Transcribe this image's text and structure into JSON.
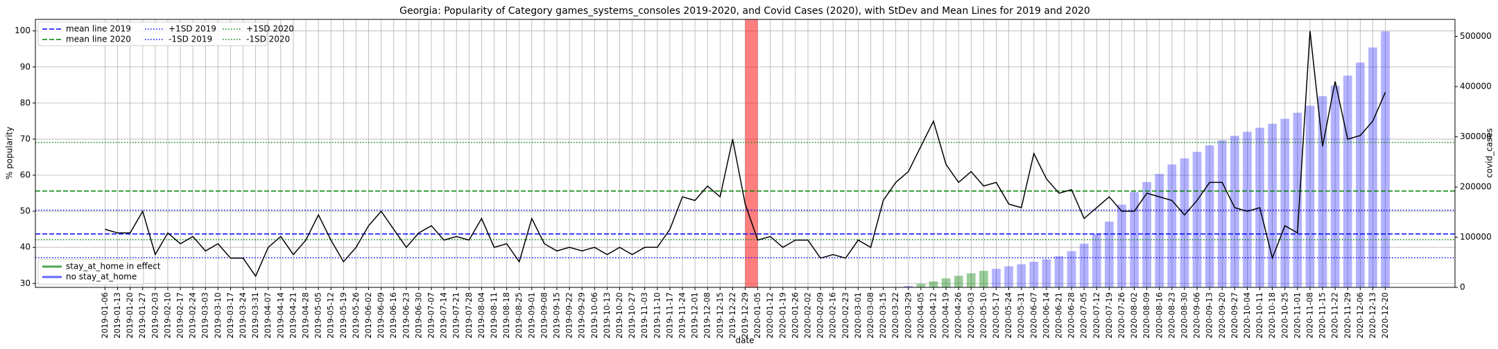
{
  "chart_data": {
    "type": "combo",
    "title": "Georgia: Popularity of Category games_systems_consoles 2019-2020, and Covid Cases (2020), with StDev and Mean Lines for 2019 and 2020",
    "xlabel": "date",
    "ylabel": "% popularity",
    "y2label": "covid_cases",
    "categories": [
      "2019-01-06",
      "2019-01-13",
      "2019-01-20",
      "2019-01-27",
      "2019-02-03",
      "2019-02-10",
      "2019-02-17",
      "2019-02-24",
      "2019-03-03",
      "2019-03-10",
      "2019-03-17",
      "2019-03-24",
      "2019-03-31",
      "2019-04-07",
      "2019-04-14",
      "2019-04-21",
      "2019-04-28",
      "2019-05-05",
      "2019-05-12",
      "2019-05-19",
      "2019-05-26",
      "2019-06-02",
      "2019-06-09",
      "2019-06-16",
      "2019-06-23",
      "2019-06-30",
      "2019-07-07",
      "2019-07-14",
      "2019-07-21",
      "2019-07-28",
      "2019-08-04",
      "2019-08-11",
      "2019-08-18",
      "2019-08-25",
      "2019-09-01",
      "2019-09-08",
      "2019-09-15",
      "2019-09-22",
      "2019-09-29",
      "2019-10-06",
      "2019-10-13",
      "2019-10-20",
      "2019-10-27",
      "2019-11-03",
      "2019-11-10",
      "2019-11-17",
      "2019-11-24",
      "2019-12-01",
      "2019-12-08",
      "2019-12-15",
      "2019-12-22",
      "2019-12-29",
      "2020-01-05",
      "2020-01-12",
      "2020-01-19",
      "2020-01-26",
      "2020-02-02",
      "2020-02-09",
      "2020-02-16",
      "2020-02-23",
      "2020-03-01",
      "2020-03-08",
      "2020-03-15",
      "2020-03-22",
      "2020-03-29",
      "2020-04-05",
      "2020-04-12",
      "2020-04-19",
      "2020-04-26",
      "2020-05-03",
      "2020-05-10",
      "2020-05-17",
      "2020-05-24",
      "2020-05-31",
      "2020-06-07",
      "2020-06-14",
      "2020-06-21",
      "2020-06-28",
      "2020-07-05",
      "2020-07-12",
      "2020-07-19",
      "2020-07-26",
      "2020-08-02",
      "2020-08-09",
      "2020-08-16",
      "2020-08-23",
      "2020-08-30",
      "2020-09-06",
      "2020-09-13",
      "2020-09-20",
      "2020-09-27",
      "2020-10-04",
      "2020-10-11",
      "2020-10-18",
      "2020-10-25",
      "2020-11-01",
      "2020-11-08",
      "2020-11-15",
      "2020-11-22",
      "2020-11-29",
      "2020-12-06",
      "2020-12-13",
      "2020-12-20"
    ],
    "series": [
      {
        "type": "bar",
        "axis": "y2",
        "name": "stay_at_home in effect",
        "color": "#008000",
        "alpha": 0.4,
        "values": [
          null,
          null,
          null,
          null,
          null,
          null,
          null,
          null,
          null,
          null,
          null,
          null,
          null,
          null,
          null,
          null,
          null,
          null,
          null,
          null,
          null,
          null,
          null,
          null,
          null,
          null,
          null,
          null,
          null,
          null,
          null,
          null,
          null,
          null,
          null,
          null,
          null,
          null,
          null,
          null,
          null,
          null,
          null,
          null,
          null,
          null,
          null,
          null,
          null,
          null,
          null,
          null,
          null,
          null,
          null,
          null,
          null,
          null,
          null,
          null,
          null,
          null,
          null,
          null,
          null,
          7000,
          12000,
          18000,
          23000,
          28000,
          33000,
          null,
          null,
          null,
          null,
          null,
          null,
          null,
          null,
          null,
          null,
          null,
          null,
          null,
          null,
          null,
          null,
          null,
          null,
          null,
          null,
          null,
          null,
          null,
          null,
          null,
          null,
          null,
          null,
          null,
          null,
          null,
          null
        ]
      },
      {
        "type": "bar",
        "axis": "y2",
        "name": "no stay_at_home",
        "color": "#0000ff",
        "alpha": 0.3,
        "values": [
          null,
          null,
          null,
          null,
          null,
          null,
          null,
          null,
          null,
          null,
          null,
          null,
          null,
          null,
          null,
          null,
          null,
          null,
          null,
          null,
          null,
          null,
          null,
          null,
          null,
          null,
          null,
          null,
          null,
          null,
          null,
          null,
          null,
          null,
          null,
          null,
          null,
          null,
          null,
          null,
          null,
          null,
          null,
          null,
          null,
          null,
          null,
          null,
          null,
          null,
          null,
          null,
          null,
          null,
          null,
          null,
          null,
          null,
          null,
          null,
          null,
          null,
          100,
          800,
          2800,
          null,
          null,
          null,
          null,
          null,
          null,
          37000,
          42000,
          46000,
          51000,
          56000,
          62000,
          72000,
          87000,
          106000,
          131000,
          165000,
          190000,
          210000,
          226000,
          245000,
          257000,
          270000,
          283000,
          293000,
          302000,
          310000,
          318000,
          326000,
          336000,
          348000,
          362000,
          381000,
          402000,
          422000,
          448000,
          478000,
          510000
        ]
      },
      {
        "type": "line",
        "color": "#000000",
        "values": [
          45,
          44,
          44,
          50,
          38,
          44,
          41,
          43,
          39,
          41,
          37,
          37,
          32,
          40,
          43,
          38,
          42,
          49,
          42,
          36,
          40,
          46,
          50,
          45,
          40,
          44,
          46,
          42,
          43,
          42,
          48,
          40,
          41,
          36,
          48,
          41,
          39,
          40,
          39,
          40,
          38,
          40,
          38,
          40,
          40,
          45,
          54,
          53,
          57,
          54,
          70,
          52,
          42,
          43,
          40,
          42,
          42,
          37,
          38,
          37,
          42,
          40,
          53,
          58,
          61,
          68,
          75,
          63,
          58,
          61,
          57,
          58,
          52,
          51,
          66,
          59,
          55,
          56,
          48,
          51,
          54,
          50,
          50,
          55,
          54,
          53,
          49,
          53,
          58,
          58,
          51,
          50,
          51,
          37,
          46,
          44,
          100,
          68,
          86,
          70,
          71,
          75,
          83
        ]
      }
    ],
    "hlines": [
      {
        "name": "mean line 2019",
        "color": "#0000ff",
        "style": "dashed",
        "value": 43.7
      },
      {
        "name": "mean line 2020",
        "color": "#008000",
        "style": "dashed",
        "value": 55.6
      },
      {
        "name": "+1SD 2019",
        "color": "#0000ff",
        "style": "dotted",
        "value": 50.3
      },
      {
        "name": "-1SD 2019",
        "color": "#0000ff",
        "style": "dotted",
        "value": 37.1
      },
      {
        "name": "+1SD 2020",
        "color": "#008000",
        "style": "dotted",
        "value": 69.1
      },
      {
        "name": "-1SD 2020",
        "color": "#008000",
        "style": "dotted",
        "value": 42.1
      }
    ],
    "span": {
      "start": "2019-12-29",
      "end": "2020-01-05",
      "color": "#ff0000",
      "alpha": 0.5
    },
    "ylim": [
      28.9,
      103.2
    ],
    "yticks": [
      30,
      40,
      50,
      60,
      70,
      80,
      90,
      100
    ],
    "y2lim": [
      0,
      534000
    ],
    "y2ticks": [
      0,
      100000,
      200000,
      300000,
      400000,
      500000
    ],
    "grid": true,
    "legend": "upper left",
    "legend2": "lower left"
  }
}
